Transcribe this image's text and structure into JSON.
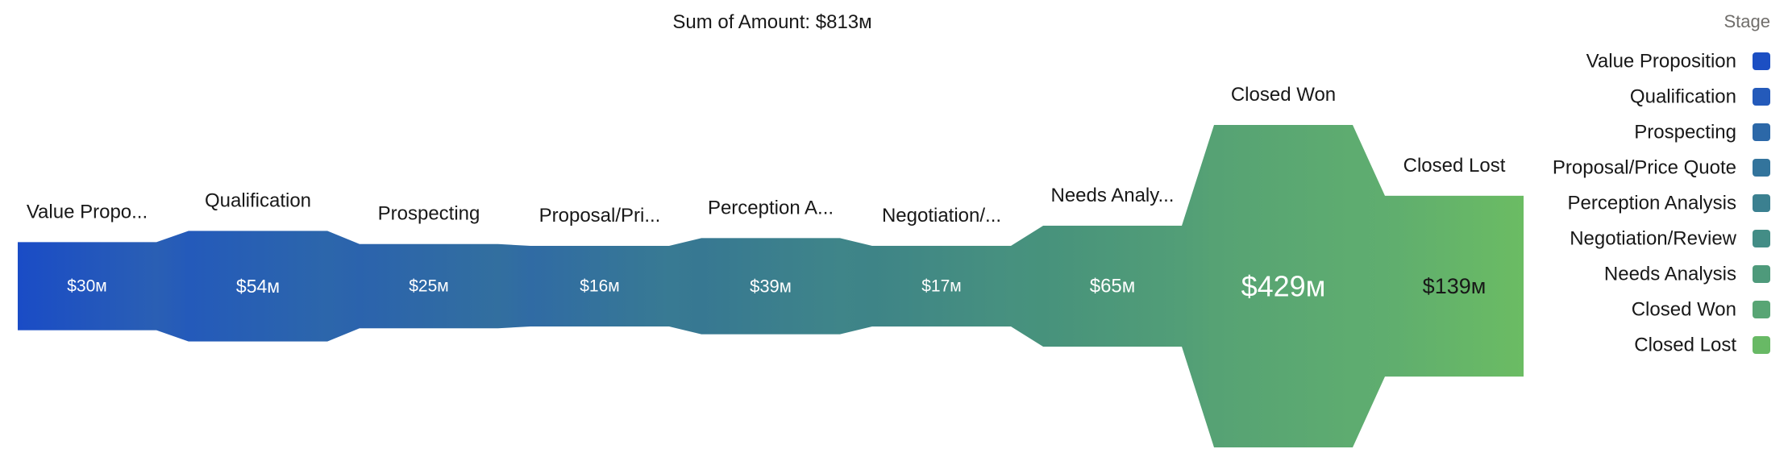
{
  "chart_data": {
    "type": "funnel",
    "title": "Sum of Amount: $813м",
    "legend": {
      "title": "Stage",
      "placement": "right",
      "items": [
        {
          "label": "Value Proposition",
          "color": "#1c4fc3"
        },
        {
          "label": "Qualification",
          "color": "#245aba"
        },
        {
          "label": "Prospecting",
          "color": "#2c68a8"
        },
        {
          "label": "Proposal/Price Quote",
          "color": "#33749c"
        },
        {
          "label": "Perception Analysis",
          "color": "#3b8090"
        },
        {
          "label": "Negotiation/Review",
          "color": "#438d86"
        },
        {
          "label": "Needs Analysis",
          "color": "#4e9a7b"
        },
        {
          "label": "Closed Won",
          "color": "#58a574"
        },
        {
          "label": "Closed Lost",
          "color": "#68b965"
        }
      ]
    },
    "segments": [
      {
        "label": "Value Propo...",
        "value": 30,
        "value_label": "$30м",
        "color_start": "#1a4cc6",
        "color_end": "#2a5fb4"
      },
      {
        "label": "Qualification",
        "value": 54,
        "value_label": "$54м",
        "color_start": "#245aba",
        "color_end": "#2c66ab"
      },
      {
        "label": "Prospecting",
        "value": 25,
        "value_label": "$25м",
        "color_start": "#2b63ad",
        "color_end": "#326f9f"
      },
      {
        "label": "Proposal/Pri...",
        "value": 16,
        "value_label": "$16м",
        "color_start": "#306ba4",
        "color_end": "#387a93"
      },
      {
        "label": "Perception A...",
        "value": 39,
        "value_label": "$39м",
        "color_start": "#377892",
        "color_end": "#3f8589"
      },
      {
        "label": "Negotiation/...",
        "value": 17,
        "value_label": "$17м",
        "color_start": "#3e8487",
        "color_end": "#47917f"
      },
      {
        "label": "Needs Analy...",
        "value": 65,
        "value_label": "$65м",
        "color_start": "#47927c",
        "color_end": "#529e77"
      },
      {
        "label": "Closed Won",
        "value": 429,
        "value_label": "$429м",
        "color_start": "#56a274",
        "color_end": "#5eac70"
      },
      {
        "label": "Closed Lost",
        "value": 139,
        "value_label": "$139м",
        "color_start": "#5fad6f",
        "color_end": "#6bbc63"
      }
    ]
  }
}
